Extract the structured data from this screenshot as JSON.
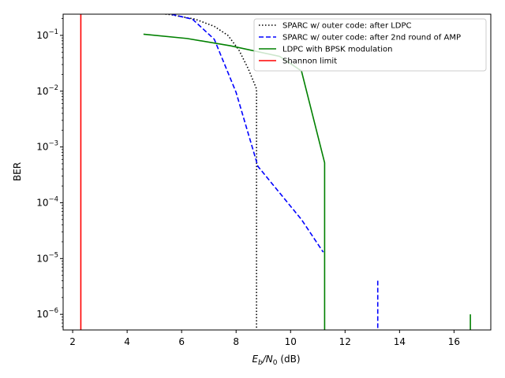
{
  "chart_data": {
    "type": "line",
    "xlabel_main": "E",
    "xlabel_sub1": "b",
    "xlabel_mid": "/N",
    "xlabel_sub2": "0",
    "xlabel_unit": " (dB)",
    "ylabel": "BER",
    "xlim": [
      1.65,
      17.35
    ],
    "ylim_log10": [
      -6.28,
      -0.62
    ],
    "yscale": "log",
    "x_ticks": [
      2,
      4,
      6,
      8,
      10,
      12,
      14,
      16
    ],
    "x_tick_labels": [
      "2",
      "4",
      "6",
      "8",
      "10",
      "12",
      "14",
      "16"
    ],
    "y_ticks_exp": [
      -6,
      -5,
      -4,
      -3,
      -2,
      -1
    ],
    "y_tick_labels": [
      "10",
      "10",
      "10",
      "10",
      "10",
      "10"
    ],
    "y_tick_exps": [
      "−6",
      "−5",
      "−4",
      "−3",
      "−2",
      "−1"
    ],
    "grid": false,
    "legend_position": "top-right",
    "series": [
      {
        "name": "SPARC w/ outer code: after LDPC",
        "color": "#000000",
        "style": "dotted",
        "points": [
          [
            4.6,
            0.265
          ],
          [
            5.6,
            0.235
          ],
          [
            6.5,
            0.195
          ],
          [
            7.2,
            0.145
          ],
          [
            7.7,
            0.1
          ],
          [
            8.1,
            0.055
          ],
          [
            8.45,
            0.025
          ],
          [
            8.75,
            0.011
          ],
          [
            8.75,
            5e-07
          ]
        ]
      },
      {
        "name": "SPARC w/ outer code: after 2nd round of AMP",
        "color": "#0000ff",
        "style": "dashed",
        "points": [
          [
            4.6,
            0.265
          ],
          [
            5.6,
            0.24
          ],
          [
            6.4,
            0.195
          ],
          [
            7.2,
            0.085
          ],
          [
            8.0,
            0.0095
          ],
          [
            8.8,
            0.00045
          ],
          [
            9.6,
            0.00015
          ],
          [
            10.4,
            5e-05
          ],
          [
            11.2,
            1.3e-05
          ]
        ],
        "spike": [
          [
            13.2,
            4e-06
          ],
          [
            13.2,
            5e-07
          ]
        ]
      },
      {
        "name": "LDPC with BPSK modulation",
        "color": "#008000",
        "style": "solid",
        "points": [
          [
            4.6,
            0.105
          ],
          [
            6.2,
            0.088
          ],
          [
            7.8,
            0.065
          ],
          [
            9.6,
            0.042
          ],
          [
            10.4,
            0.023
          ],
          [
            11.25,
            0.00052
          ],
          [
            11.25,
            5e-07
          ]
        ],
        "spike": [
          [
            16.6,
            1e-06
          ],
          [
            16.6,
            5e-07
          ]
        ]
      },
      {
        "name": "Shannon limit",
        "color": "#ff0000",
        "style": "solid",
        "vertical_x": 2.3
      }
    ]
  }
}
